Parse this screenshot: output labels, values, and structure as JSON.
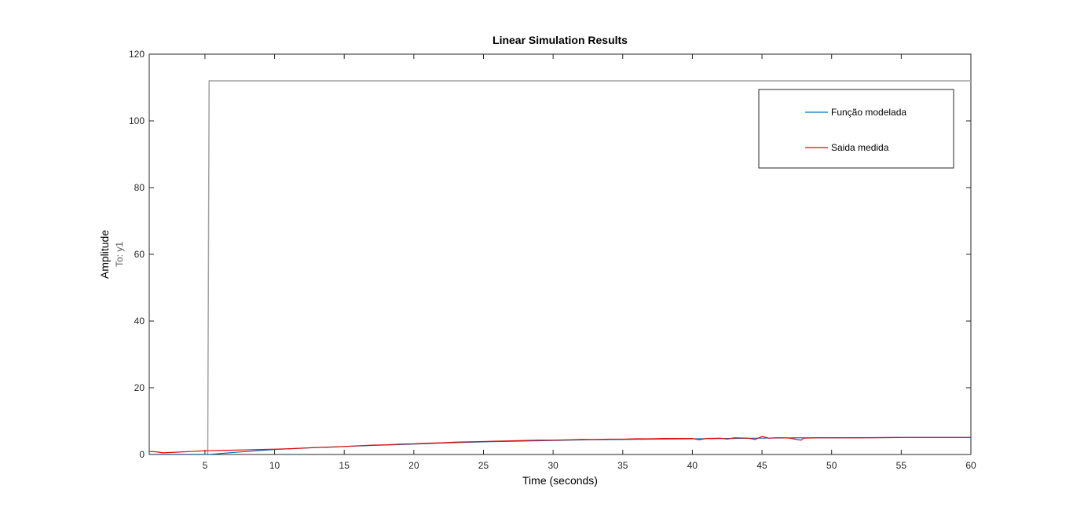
{
  "chart_data": {
    "type": "line",
    "title": "Linear Simulation Results",
    "xlabel": "Time (seconds)",
    "ylabel": "Amplitude",
    "ylabel_sub": "To: y1",
    "xlim": [
      1,
      60
    ],
    "ylim": [
      0,
      120
    ],
    "xticks": [
      5,
      10,
      15,
      20,
      25,
      30,
      35,
      40,
      45,
      50,
      55,
      60
    ],
    "yticks": [
      0,
      20,
      40,
      60,
      80,
      100,
      120
    ],
    "grid": false,
    "legend": {
      "position": "top-right",
      "entries": [
        {
          "label": "Função modelada",
          "color": "#0072BD"
        },
        {
          "label": "Saida medida",
          "color": "#E8080A"
        }
      ]
    },
    "series": [
      {
        "role": "input",
        "color": "#A0A0A0",
        "x": [
          1,
          5.2,
          5.3,
          60
        ],
        "y": [
          0,
          0,
          112,
          112
        ]
      },
      {
        "name": "Função modelada",
        "color": "#0072BD",
        "x": [
          1,
          5.3,
          7,
          10,
          12.5,
          15,
          17.5,
          20,
          22.5,
          25,
          27.5,
          30,
          32.5,
          35,
          37.5,
          40,
          42.5,
          45,
          47.5,
          50,
          55,
          60
        ],
        "y": [
          0,
          0,
          0.6,
          1.5,
          2.0,
          2.4,
          2.8,
          3.1,
          3.5,
          3.8,
          4.0,
          4.2,
          4.4,
          4.5,
          4.6,
          4.7,
          4.8,
          4.9,
          5.0,
          5.0,
          5.1,
          5.1
        ]
      },
      {
        "name": "Saida medida",
        "color": "#E8080A",
        "x": [
          1,
          1.5,
          2,
          3,
          4,
          5,
          6,
          7,
          8,
          9,
          10,
          11,
          12,
          13,
          14,
          15,
          16,
          17,
          18,
          19,
          20,
          21,
          22,
          23,
          24,
          25,
          26,
          27,
          28,
          29,
          30,
          31,
          32,
          33,
          34,
          35,
          36,
          37,
          38,
          39,
          40,
          40.5,
          41,
          42,
          42.5,
          43,
          44,
          44.5,
          45,
          45.5,
          46,
          46.5,
          47,
          47.5,
          47.8,
          48,
          49,
          50,
          52,
          55,
          58,
          60
        ],
        "y": [
          0.9,
          0.8,
          0.5,
          0.7,
          0.9,
          1.1,
          1.2,
          1.3,
          1.4,
          1.5,
          1.6,
          1.7,
          1.9,
          2.1,
          2.2,
          2.4,
          2.6,
          2.8,
          2.9,
          3.1,
          3.2,
          3.4,
          3.5,
          3.7,
          3.8,
          3.9,
          4.0,
          4.1,
          4.2,
          4.3,
          4.3,
          4.4,
          4.5,
          4.5,
          4.6,
          4.6,
          4.7,
          4.7,
          4.8,
          4.8,
          4.8,
          4.4,
          4.8,
          4.9,
          4.6,
          5.0,
          4.9,
          4.5,
          5.4,
          4.9,
          5.0,
          5.0,
          4.9,
          4.5,
          4.3,
          4.9,
          5.0,
          5.0,
          5.0,
          5.1,
          5.1,
          5.1
        ]
      }
    ]
  }
}
